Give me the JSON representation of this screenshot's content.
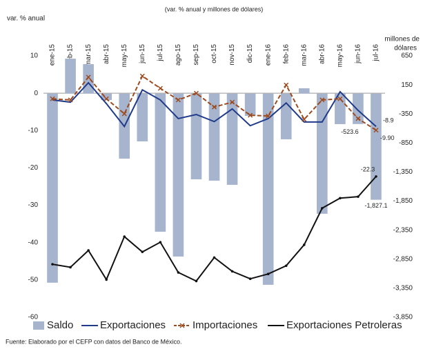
{
  "chart_data": {
    "type": "combo",
    "title": "(var. % anual y millones de dólares)",
    "y_label": "var. % anual",
    "y2_label": [
      "millones de",
      "dólares"
    ],
    "source": "Fuente: Elaborado por el CEFP con datos del Banco de México.",
    "categories": [
      "ene-15",
      "feb-15",
      "mar-15",
      "abr-15",
      "may-15",
      "jun-15",
      "jul-15",
      "ago-15",
      "sep-15",
      "oct-15",
      "nov-15",
      "dic-15",
      "ene-16",
      "feb-16",
      "mar-16",
      "abr-16",
      "may-16",
      "jun-16",
      "jul-16"
    ],
    "ylim": [
      -60,
      10
    ],
    "yticks": [
      10,
      0,
      -10,
      -20,
      -30,
      -40,
      -50,
      -60
    ],
    "y2lim": [
      -3850,
      650
    ],
    "y2ticks": [
      650,
      150,
      -350,
      -850,
      {
        "value": -1350,
        "label": "-1,350"
      },
      {
        "value": -1850,
        "label": "-1,850"
      },
      {
        "value": -2350,
        "label": "-2,350"
      },
      {
        "value": -2850,
        "label": "-2,850"
      },
      {
        "value": -3350,
        "label": "-3,350"
      },
      {
        "value": -3850,
        "label": "-3,850"
      }
    ],
    "grid": false,
    "legend": "bottom",
    "series": [
      {
        "name": "Saldo",
        "type": "bar",
        "axis": "y2",
        "color": "#a7b4cd",
        "values": [
          -3255,
          602,
          508,
          -110,
          -1119,
          -822,
          -2377,
          -2804,
          -1475,
          -1498,
          -1570,
          -383,
          -3291,
          -786,
          92,
          -2068,
          -525,
          -523.6,
          -1827.1
        ],
        "value_labels": [
          null,
          null,
          null,
          null,
          null,
          null,
          null,
          null,
          null,
          null,
          null,
          null,
          null,
          null,
          null,
          null,
          null,
          "-523.6",
          "-1,827.1"
        ]
      },
      {
        "name": "Exportaciones",
        "type": "line",
        "color": "#1f3a8a",
        "marker": "none",
        "values": [
          -1.8,
          -2.4,
          2.8,
          -2.8,
          -8.9,
          0.9,
          -1.8,
          -6.8,
          -5.7,
          -7.6,
          -4.2,
          -8.7,
          -6.8,
          -2.6,
          -7.7,
          -7.7,
          0.4,
          -4.6,
          -8.9
        ],
        "value_labels": [
          null,
          null,
          null,
          null,
          null,
          null,
          null,
          null,
          null,
          null,
          null,
          null,
          null,
          null,
          null,
          null,
          null,
          null,
          "-8.9"
        ]
      },
      {
        "name": "Importaciones",
        "type": "line",
        "color": "#9c4a1e",
        "marker": "x",
        "dashed": true,
        "values": [
          -1.5,
          -1.8,
          4.3,
          -1.5,
          -5.5,
          4.6,
          1.3,
          -1.8,
          0,
          -3.7,
          -2.4,
          -5.9,
          -6.1,
          2.2,
          -7.0,
          -1.8,
          -1.5,
          -6.8,
          -9.9
        ],
        "value_labels": [
          null,
          null,
          null,
          null,
          null,
          null,
          null,
          null,
          null,
          null,
          null,
          null,
          null,
          null,
          null,
          null,
          null,
          null,
          "-9.90"
        ]
      },
      {
        "name": "Exportaciones Petroleras",
        "type": "line",
        "color": "#111111",
        "marker": "dot",
        "values": [
          -45.8,
          -46.6,
          -42.1,
          -49.9,
          -38.4,
          -42.5,
          -39.9,
          -48.0,
          -50.3,
          -44.0,
          -47.7,
          -49.7,
          -48.4,
          -46.2,
          -40.6,
          -30.8,
          -28.1,
          -27.7,
          -22.3
        ],
        "value_labels": [
          null,
          null,
          null,
          null,
          null,
          null,
          null,
          null,
          null,
          null,
          null,
          null,
          null,
          null,
          null,
          null,
          null,
          null,
          "-22.3"
        ]
      }
    ]
  }
}
